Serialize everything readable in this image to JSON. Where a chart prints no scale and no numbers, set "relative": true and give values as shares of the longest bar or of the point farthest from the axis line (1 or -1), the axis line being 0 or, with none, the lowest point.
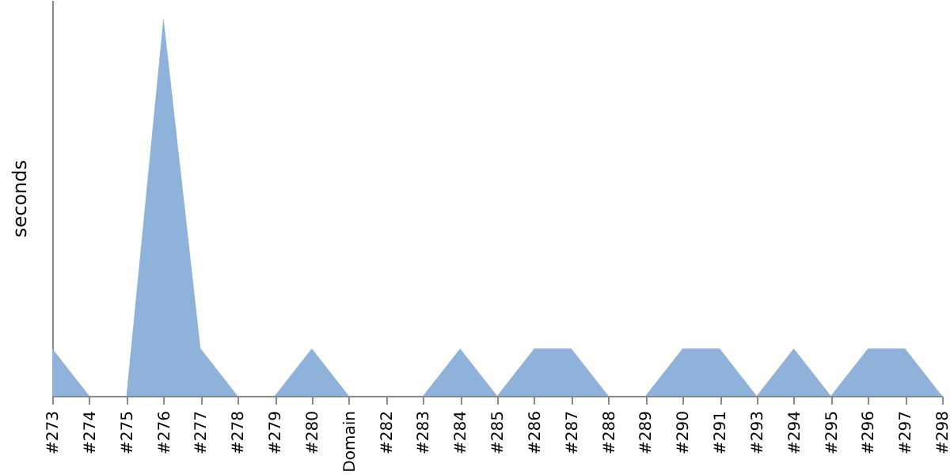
{
  "chart_data": {
    "type": "area",
    "ylabel": "seconds",
    "relative": true,
    "grid": false,
    "categories": [
      "#273",
      "#274",
      "#275",
      "#276",
      "#277",
      "#278",
      "#279",
      "#280",
      "Domain",
      "#282",
      "#283",
      "#284",
      "#285",
      "#286",
      "#287",
      "#288",
      "#289",
      "#290",
      "#291",
      "#293",
      "#294",
      "#295",
      "#296",
      "#297",
      "#298"
    ],
    "series": [
      {
        "color": "#8fb2db",
        "values": [
          0.125,
          0,
          0,
          1,
          0.125,
          0,
          0,
          0.125,
          0,
          0,
          0,
          0.125,
          0,
          0.125,
          0.125,
          0,
          0,
          0.125,
          0.125,
          0,
          0.125,
          0,
          0.125,
          0.125,
          0
        ]
      }
    ]
  }
}
